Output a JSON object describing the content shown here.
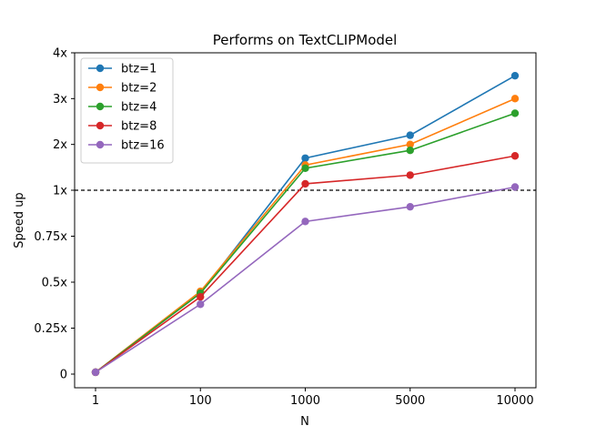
{
  "chart_data": {
    "type": "line",
    "title": "Performs on TextCLIPModel",
    "xlabel": "N",
    "ylabel": "Speed up",
    "categories": [
      "1",
      "100",
      "1000",
      "5000",
      "10000"
    ],
    "y_tick_labels": [
      "0",
      "0.25x",
      "0.5x",
      "0.75x",
      "1x",
      "2x",
      "3x",
      "4x"
    ],
    "y_scale": "piecewise: 0 to 1x linear, 1x to 4x linear (equal spacing per tick)",
    "reference_line": {
      "value": 1,
      "style": "dashed",
      "color": "#000000"
    },
    "legend_position": "upper-left",
    "grid": false,
    "series": [
      {
        "name": "btz=1",
        "color": "#1f77b4",
        "values": [
          0.01,
          0.44,
          1.7,
          2.2,
          3.5
        ]
      },
      {
        "name": "btz=2",
        "color": "#ff7f0e",
        "values": [
          0.01,
          0.45,
          1.55,
          2.0,
          3.0
        ]
      },
      {
        "name": "btz=4",
        "color": "#2ca02c",
        "values": [
          0.01,
          0.44,
          1.48,
          1.87,
          2.68
        ]
      },
      {
        "name": "btz=8",
        "color": "#d62728",
        "values": [
          0.01,
          0.42,
          1.14,
          1.33,
          1.75
        ]
      },
      {
        "name": "btz=16",
        "color": "#9467bd",
        "values": [
          0.01,
          0.38,
          0.83,
          0.91,
          1.07
        ]
      }
    ]
  }
}
